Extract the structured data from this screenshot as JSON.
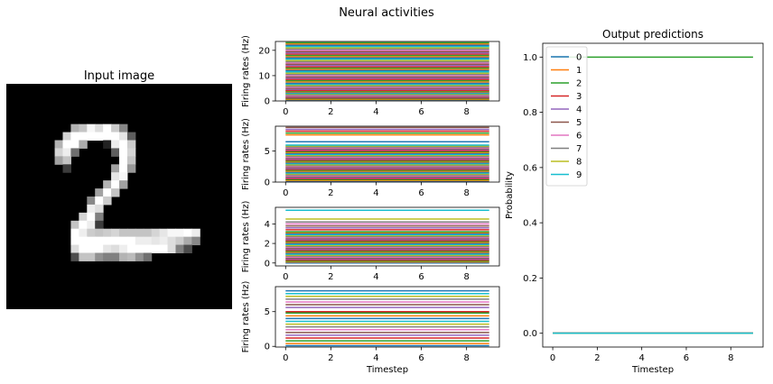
{
  "figure": {
    "suptitle": "Neural activities"
  },
  "chart_data": [
    {
      "type": "image",
      "title": "Input image",
      "grid_size": [
        28,
        28
      ],
      "content": "handwritten digit 2, grayscale"
    },
    {
      "type": "line",
      "panel": "layer-1",
      "xlabel": "",
      "ylabel": "Firing rates (Hz)",
      "xlim": [
        -0.45,
        9.45
      ],
      "ylim": [
        0,
        23.5
      ],
      "xticks": [
        "0",
        "2",
        "4",
        "6",
        "8"
      ],
      "yticks": [
        "0",
        "10",
        "20"
      ],
      "ytick_values": [
        0,
        10,
        20
      ],
      "x": [
        0,
        9
      ],
      "constant_series_values": [
        0.3,
        0.6,
        0.9,
        1.2,
        1.5,
        1.8,
        2.1,
        2.4,
        2.7,
        3.0,
        3.3,
        3.6,
        3.9,
        4.2,
        4.6,
        5.0,
        5.4,
        5.8,
        6.2,
        6.6,
        7.0,
        7.5,
        8.0,
        8.5,
        9.0,
        9.5,
        10.0,
        10.5,
        11.0,
        11.5,
        12.0,
        12.5,
        13.0,
        13.5,
        14.0,
        14.5,
        15.0,
        15.5,
        16.0,
        16.5,
        17.0,
        17.5,
        18.0,
        18.5,
        19.0,
        19.5,
        20.0,
        20.5,
        21.0,
        21.5,
        22.0,
        22.5,
        23.0
      ]
    },
    {
      "type": "line",
      "panel": "layer-2",
      "xlabel": "",
      "ylabel": "Firing rates (Hz)",
      "xlim": [
        -0.45,
        9.45
      ],
      "ylim": [
        0,
        9.0
      ],
      "xticks": [
        "0",
        "2",
        "4",
        "6",
        "8"
      ],
      "yticks": [
        "0",
        "5"
      ],
      "ytick_values": [
        0,
        5
      ],
      "x": [
        0,
        9
      ],
      "constant_series_values": [
        0.1,
        0.25,
        0.4,
        0.55,
        0.7,
        0.85,
        1.0,
        1.15,
        1.3,
        1.45,
        1.6,
        1.75,
        1.9,
        2.05,
        2.2,
        2.35,
        2.5,
        2.65,
        2.8,
        2.95,
        3.1,
        3.25,
        3.4,
        3.55,
        3.7,
        3.85,
        4.0,
        4.15,
        4.3,
        4.45,
        4.6,
        4.75,
        4.9,
        5.05,
        5.2,
        5.35,
        5.5,
        5.65,
        5.8,
        5.95,
        6.5,
        7.6,
        7.9,
        8.2,
        8.5,
        8.8
      ]
    },
    {
      "type": "line",
      "panel": "layer-3",
      "xlabel": "",
      "ylabel": "Firing rates (Hz)",
      "xlim": [
        -0.45,
        9.45
      ],
      "ylim": [
        -0.3,
        5.7
      ],
      "xticks": [
        "0",
        "2",
        "4",
        "6",
        "8"
      ],
      "yticks": [
        "0",
        "2",
        "4"
      ],
      "ytick_values": [
        0,
        2,
        4
      ],
      "x": [
        0,
        9
      ],
      "constant_series_values": [
        0.0,
        0.1,
        0.2,
        0.3,
        0.4,
        0.5,
        0.6,
        0.7,
        0.8,
        0.9,
        1.0,
        1.1,
        1.2,
        1.3,
        1.4,
        1.5,
        1.6,
        1.7,
        1.8,
        1.9,
        2.0,
        2.1,
        2.2,
        2.3,
        2.4,
        2.5,
        2.6,
        2.7,
        2.8,
        2.9,
        3.0,
        3.1,
        3.2,
        3.4,
        3.6,
        3.8,
        4.0,
        4.2,
        4.5,
        5.4
      ]
    },
    {
      "type": "line",
      "panel": "layer-4",
      "xlabel": "Timestep",
      "ylabel": "Firing rates (Hz)",
      "xlim": [
        -0.45,
        9.45
      ],
      "ylim": [
        -0.1,
        8.6
      ],
      "xticks": [
        "0",
        "2",
        "4",
        "6",
        "8"
      ],
      "yticks": [
        "0",
        "5"
      ],
      "ytick_values": [
        0,
        5
      ],
      "x": [
        0,
        9
      ],
      "constant_series_values": [
        0.1,
        0.4,
        0.8,
        1.2,
        1.6,
        2.0,
        2.4,
        2.8,
        3.2,
        3.6,
        4.0,
        4.4,
        4.8,
        5.0,
        5.6,
        6.0,
        6.4,
        6.8,
        7.2,
        7.6,
        8.0
      ]
    },
    {
      "type": "line",
      "title": "Output predictions",
      "xlabel": "Timestep",
      "ylabel": "Probability",
      "xlim": [
        -0.45,
        9.45
      ],
      "ylim": [
        -0.05,
        1.05
      ],
      "xticks": [
        "0",
        "2",
        "4",
        "6",
        "8"
      ],
      "yticks": [
        "0.0",
        "0.2",
        "0.4",
        "0.6",
        "0.8",
        "1.0"
      ],
      "ytick_values": [
        0.0,
        0.2,
        0.4,
        0.6,
        0.8,
        1.0
      ],
      "legend": "top-left",
      "x": [
        0,
        9
      ],
      "series": [
        {
          "name": "0",
          "values": [
            0,
            0
          ],
          "color": "#1f77b4"
        },
        {
          "name": "1",
          "values": [
            0,
            0
          ],
          "color": "#ff7f0e"
        },
        {
          "name": "2",
          "values": [
            1,
            1
          ],
          "color": "#2ca02c"
        },
        {
          "name": "3",
          "values": [
            0,
            0
          ],
          "color": "#d62728"
        },
        {
          "name": "4",
          "values": [
            0,
            0
          ],
          "color": "#9467bd"
        },
        {
          "name": "5",
          "values": [
            0,
            0
          ],
          "color": "#8c564b"
        },
        {
          "name": "6",
          "values": [
            0,
            0
          ],
          "color": "#e377c2"
        },
        {
          "name": "7",
          "values": [
            0,
            0
          ],
          "color": "#7f7f7f"
        },
        {
          "name": "8",
          "values": [
            0,
            0
          ],
          "color": "#bcbd22"
        },
        {
          "name": "9",
          "values": [
            0,
            0
          ],
          "color": "#17becf"
        }
      ]
    }
  ],
  "colors": {
    "cycle": [
      "#1f77b4",
      "#ff7f0e",
      "#2ca02c",
      "#d62728",
      "#9467bd",
      "#8c564b",
      "#e377c2",
      "#7f7f7f",
      "#bcbd22",
      "#17becf"
    ]
  }
}
